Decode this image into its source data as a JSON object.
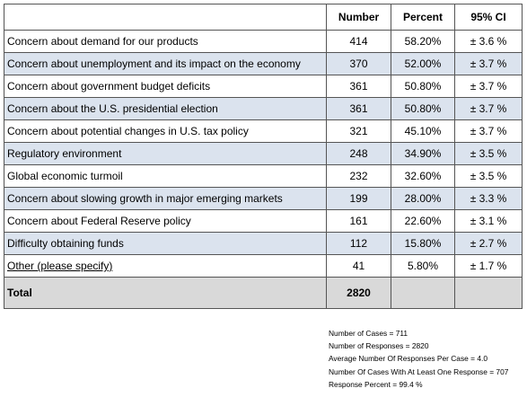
{
  "table": {
    "headers": {
      "category": "",
      "number": "Number",
      "percent": "Percent",
      "ci": "95% CI"
    },
    "rows": [
      {
        "label": "Concern about demand for our products",
        "number": "414",
        "percent": "58.20%",
        "ci": "± 3.6 %"
      },
      {
        "label": "Concern about unemployment and its impact on the economy",
        "number": "370",
        "percent": "52.00%",
        "ci": "± 3.7 %"
      },
      {
        "label": "Concern about government budget deficits",
        "number": "361",
        "percent": "50.80%",
        "ci": "± 3.7 %"
      },
      {
        "label": "Concern about the U.S. presidential election",
        "number": "361",
        "percent": "50.80%",
        "ci": "± 3.7 %"
      },
      {
        "label": "Concern about potential changes in U.S. tax policy",
        "number": "321",
        "percent": "45.10%",
        "ci": "± 3.7 %"
      },
      {
        "label": "Regulatory environment",
        "number": "248",
        "percent": "34.90%",
        "ci": "± 3.5 %"
      },
      {
        "label": "Global economic turmoil",
        "number": "232",
        "percent": "32.60%",
        "ci": "± 3.5 %"
      },
      {
        "label": "Concern about slowing growth in major emerging markets",
        "number": "199",
        "percent": "28.00%",
        "ci": "± 3.3 %"
      },
      {
        "label": "Concern about Federal Reserve policy",
        "number": "161",
        "percent": "22.60%",
        "ci": "± 3.1 %"
      },
      {
        "label": "Difficulty obtaining funds",
        "number": "112",
        "percent": "15.80%",
        "ci": "± 2.7 %"
      },
      {
        "label": "Other (please specify)",
        "number": "41",
        "percent": "5.80%",
        "ci": "± 1.7 %"
      }
    ],
    "total": {
      "label": "Total",
      "number": "2820"
    }
  },
  "summary": {
    "cases": "Number of Cases = 711",
    "responses": "Number of Responses = 2820",
    "avg_responses": "Average Number Of Responses Per Case = 4.0",
    "cases_with_response": "Number Of Cases With At Least One Response = 707",
    "response_percent": "Response Percent = 99.4 %"
  },
  "colors": {
    "shade_row": "#dbe3ee",
    "total_row": "#d9d9d9",
    "border": "#555555"
  }
}
